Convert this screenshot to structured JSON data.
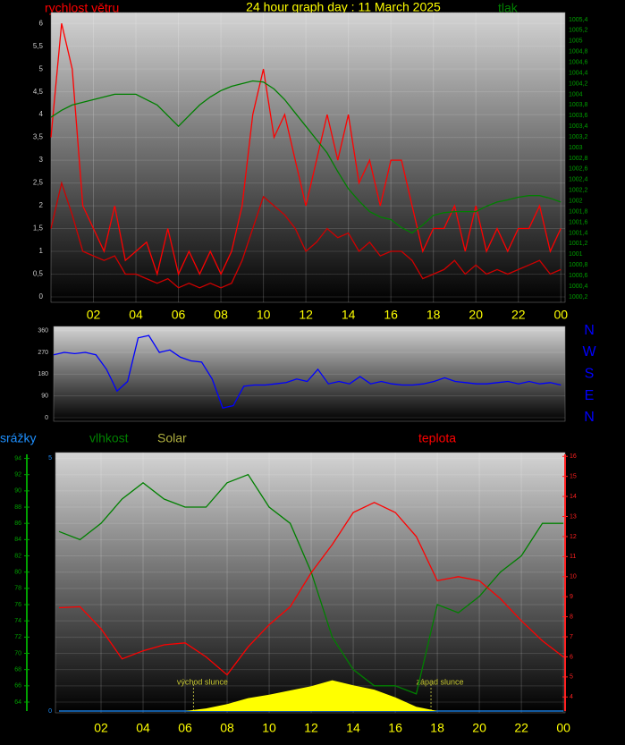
{
  "chart_data": [
    {
      "type": "line",
      "title": "24 hour graph day : 11 March 2025",
      "ylabel": "rychlost větru",
      "y2label": "tlak",
      "x": [
        0,
        0.5,
        1,
        1.5,
        2,
        2.5,
        3,
        3.5,
        4,
        4.5,
        5,
        5.5,
        6,
        6.5,
        7,
        7.5,
        8,
        8.5,
        9,
        9.5,
        10,
        10.5,
        11,
        11.5,
        12,
        12.5,
        13,
        13.5,
        14,
        14.5,
        15,
        15.5,
        16,
        16.5,
        17,
        17.5,
        18,
        18.5,
        19,
        19.5,
        20,
        20.5,
        21,
        21.5,
        22,
        22.5,
        23,
        23.5,
        24
      ],
      "xlim": [
        0,
        24.2
      ],
      "xticks": [
        {
          "value": 2,
          "label": "02"
        },
        {
          "value": 4,
          "label": "04"
        },
        {
          "value": 6,
          "label": "06"
        },
        {
          "value": 8,
          "label": "08"
        },
        10,
        12,
        14,
        16,
        18,
        20,
        22,
        {
          "value": 24,
          "label": "00"
        }
      ],
      "ylim": [
        0,
        6.2
      ],
      "yticks": [
        0,
        {
          "value": 0.5,
          "label": "0,5"
        },
        1,
        {
          "value": 1.5,
          "label": "1,5"
        },
        2,
        {
          "value": 2.5,
          "label": "2,5"
        },
        3,
        {
          "value": 3.5,
          "label": "3,5"
        },
        4,
        {
          "value": 4.5,
          "label": "4,5"
        },
        5,
        {
          "value": 5.5,
          "label": "5,5"
        },
        6
      ],
      "y2lim": [
        1000.2,
        1005.5
      ],
      "y2ticks": [
        {
          "value": 1000.2,
          "label": "1000,2"
        },
        {
          "value": 1000.4,
          "label": "1000,4"
        },
        {
          "value": 1000.6,
          "label": "1000,6"
        },
        {
          "value": 1000.8,
          "label": "1000,8"
        },
        1001,
        {
          "value": 1001.2,
          "label": "1001,2"
        },
        {
          "value": 1001.4,
          "label": "1001,4"
        },
        {
          "value": 1001.6,
          "label": "1001,6"
        },
        {
          "value": 1001.8,
          "label": "1001,8"
        },
        1002,
        {
          "value": 1002.2,
          "label": "1002,2"
        },
        {
          "value": 1002.4,
          "label": "1002,4"
        },
        {
          "value": 1002.6,
          "label": "1002,6"
        },
        {
          "value": 1002.8,
          "label": "1002,8"
        },
        1003,
        {
          "value": 1003.2,
          "label": "1003,2"
        },
        {
          "value": 1003.4,
          "label": "1003,4"
        },
        {
          "value": 1003.6,
          "label": "1003,6"
        },
        {
          "value": 1003.8,
          "label": "1003,8"
        },
        1004,
        {
          "value": 1004.2,
          "label": "1004,2"
        },
        {
          "value": 1004.4,
          "label": "1004,4"
        },
        {
          "value": 1004.6,
          "label": "1004,6"
        },
        {
          "value": 1004.8,
          "label": "1004,8"
        },
        1005,
        {
          "value": 1005.2,
          "label": "1005,2"
        },
        {
          "value": 1005.4,
          "label": "1005,4"
        }
      ],
      "series": [
        {
          "color": "#ff0000",
          "values": [
            3.5,
            6,
            5,
            2,
            1.5,
            1,
            2,
            0.8,
            1,
            1.2,
            0.5,
            1.5,
            0.5,
            1,
            0.5,
            1,
            0.5,
            1,
            2,
            4,
            5,
            3.5,
            4,
            3,
            2,
            3,
            4,
            3,
            4,
            2.5,
            3,
            2,
            3,
            3,
            2,
            1,
            1.5,
            1.5,
            2,
            1,
            2,
            1,
            1.5,
            1,
            1.5,
            1.5,
            2,
            1,
            1.5
          ]
        },
        {
          "color": "#d00000",
          "values": [
            1.5,
            2.5,
            1.8,
            1,
            0.9,
            0.8,
            0.9,
            0.5,
            0.5,
            0.4,
            0.3,
            0.4,
            0.2,
            0.3,
            0.2,
            0.3,
            0.2,
            0.3,
            0.8,
            1.5,
            2.2,
            2,
            1.8,
            1.5,
            1,
            1.2,
            1.5,
            1.3,
            1.4,
            1,
            1.2,
            0.9,
            1,
            1,
            0.8,
            0.4,
            0.5,
            0.6,
            0.8,
            0.5,
            0.7,
            0.5,
            0.6,
            0.5,
            0.6,
            0.7,
            0.8,
            0.5,
            0.6
          ]
        },
        {
          "color": "#008000",
          "axis": "y2",
          "values": [
            1003.57,
            1003.7,
            1003.8,
            1003.85,
            1003.9,
            1003.95,
            1004.0,
            1004.0,
            1004.0,
            1003.9,
            1003.8,
            1003.6,
            1003.4,
            1003.6,
            1003.8,
            1003.95,
            1004.07,
            1004.15,
            1004.2,
            1004.25,
            1004.23,
            1004.1,
            1003.9,
            1003.65,
            1003.4,
            1003.15,
            1002.9,
            1002.55,
            1002.23,
            1002.0,
            1001.8,
            1001.7,
            1001.65,
            1001.5,
            1001.4,
            1001.55,
            1001.73,
            1001.78,
            1001.8,
            1001.8,
            1001.8,
            1001.9,
            1001.98,
            1002.02,
            1002.07,
            1002.1,
            1002.1,
            1002.05,
            1001.98
          ]
        }
      ]
    },
    {
      "type": "line",
      "x": [
        0,
        0.5,
        1,
        1.5,
        2,
        2.5,
        3,
        3.5,
        4,
        4.5,
        5,
        5.5,
        6,
        6.5,
        7,
        7.5,
        8,
        8.5,
        9,
        9.5,
        10,
        10.5,
        11,
        11.5,
        12,
        12.5,
        13,
        13.5,
        14,
        14.5,
        15,
        15.5,
        16,
        16.5,
        17,
        17.5,
        18,
        18.5,
        19,
        19.5,
        20,
        20.5,
        21,
        21.5,
        22,
        22.5,
        23,
        23.5,
        24
      ],
      "xlim": [
        0,
        24.2
      ],
      "ylim": [
        0,
        370
      ],
      "yticks": [
        0,
        90,
        180,
        270,
        360
      ],
      "y2lim": [
        0,
        370
      ],
      "y2ticks": [
        {
          "value": 360,
          "label": "N"
        },
        {
          "value": 270,
          "label": "W"
        },
        {
          "value": 180,
          "label": "S"
        },
        {
          "value": 90,
          "label": "E"
        },
        {
          "value": 0,
          "label": "N"
        }
      ],
      "series": [
        {
          "color": "#0000ff",
          "values": [
            260,
            270,
            265,
            270,
            260,
            200,
            110,
            150,
            330,
            340,
            270,
            280,
            250,
            235,
            230,
            160,
            40,
            50,
            130,
            135,
            135,
            140,
            145,
            160,
            150,
            200,
            140,
            150,
            140,
            170,
            140,
            150,
            140,
            135,
            135,
            140,
            150,
            165,
            150,
            145,
            140,
            140,
            145,
            150,
            140,
            150,
            140,
            145,
            135
          ]
        }
      ]
    },
    {
      "type": "line",
      "x": [
        0,
        1,
        2,
        3,
        4,
        5,
        6,
        7,
        8,
        9,
        10,
        11,
        12,
        13,
        14,
        15,
        16,
        17,
        18,
        19,
        20,
        21,
        22,
        23,
        24
      ],
      "xlim": [
        -0.17,
        24.08
      ],
      "xticks": [
        {
          "value": 2,
          "label": "02"
        },
        {
          "value": 4,
          "label": "04"
        },
        {
          "value": 6,
          "label": "06"
        },
        {
          "value": 8,
          "label": "08"
        },
        10,
        12,
        14,
        16,
        18,
        20,
        22,
        {
          "value": 24,
          "label": "00"
        }
      ],
      "ylim": [
        62.9,
        94.5
      ],
      "yticks": [
        64,
        66,
        68,
        70,
        72,
        74,
        76,
        78,
        80,
        82,
        84,
        86,
        88,
        90,
        92,
        94
      ],
      "y2lim": [
        3.3,
        16.1
      ],
      "y2ticks": [
        4,
        5,
        6,
        7,
        8,
        9,
        10,
        11,
        12,
        13,
        14,
        15,
        16
      ],
      "y3lim": [
        0,
        5.07
      ],
      "y3ticks": [
        0,
        5
      ],
      "y4lim": [
        0,
        300
      ],
      "series": [
        {
          "name": "srážky",
          "color": "#1e90ff",
          "axis": "y3",
          "values": [
            0,
            0,
            0,
            0,
            0,
            0,
            0,
            0,
            0,
            0,
            0,
            0,
            0,
            0,
            0,
            0,
            0,
            0,
            0,
            0,
            0,
            0,
            0,
            0,
            0
          ]
        },
        {
          "name": "vlhkost",
          "color": "#008000",
          "values": [
            85,
            84,
            86,
            89,
            91,
            89,
            88,
            88,
            91,
            92,
            88,
            86,
            80,
            72,
            68,
            66,
            66,
            65,
            76,
            75,
            77,
            80,
            82,
            86,
            86
          ]
        },
        {
          "name": "Solar",
          "color": "#ffff00",
          "axis": "y4",
          "style": "area",
          "values": [
            0,
            0,
            0,
            0,
            0,
            0,
            0,
            3,
            8,
            15,
            19,
            24,
            29,
            36,
            30,
            25,
            16,
            5,
            0,
            0,
            0,
            0,
            0,
            0,
            0
          ]
        },
        {
          "name": "teplota",
          "color": "#ff0000",
          "axis": "y2",
          "values": [
            8.45,
            8.5,
            7.4,
            5.9,
            6.3,
            6.6,
            6.7,
            6.0,
            5.1,
            6.5,
            7.6,
            8.5,
            10.2,
            11.6,
            13.2,
            13.7,
            13.2,
            12.0,
            9.8,
            10.0,
            9.8,
            8.9,
            7.8,
            6.8,
            6.0
          ]
        }
      ],
      "annotations": [
        {
          "text": "východ slunce",
          "x": 6.4
        },
        {
          "text": "západ slunce",
          "x": 17.7
        }
      ]
    }
  ]
}
